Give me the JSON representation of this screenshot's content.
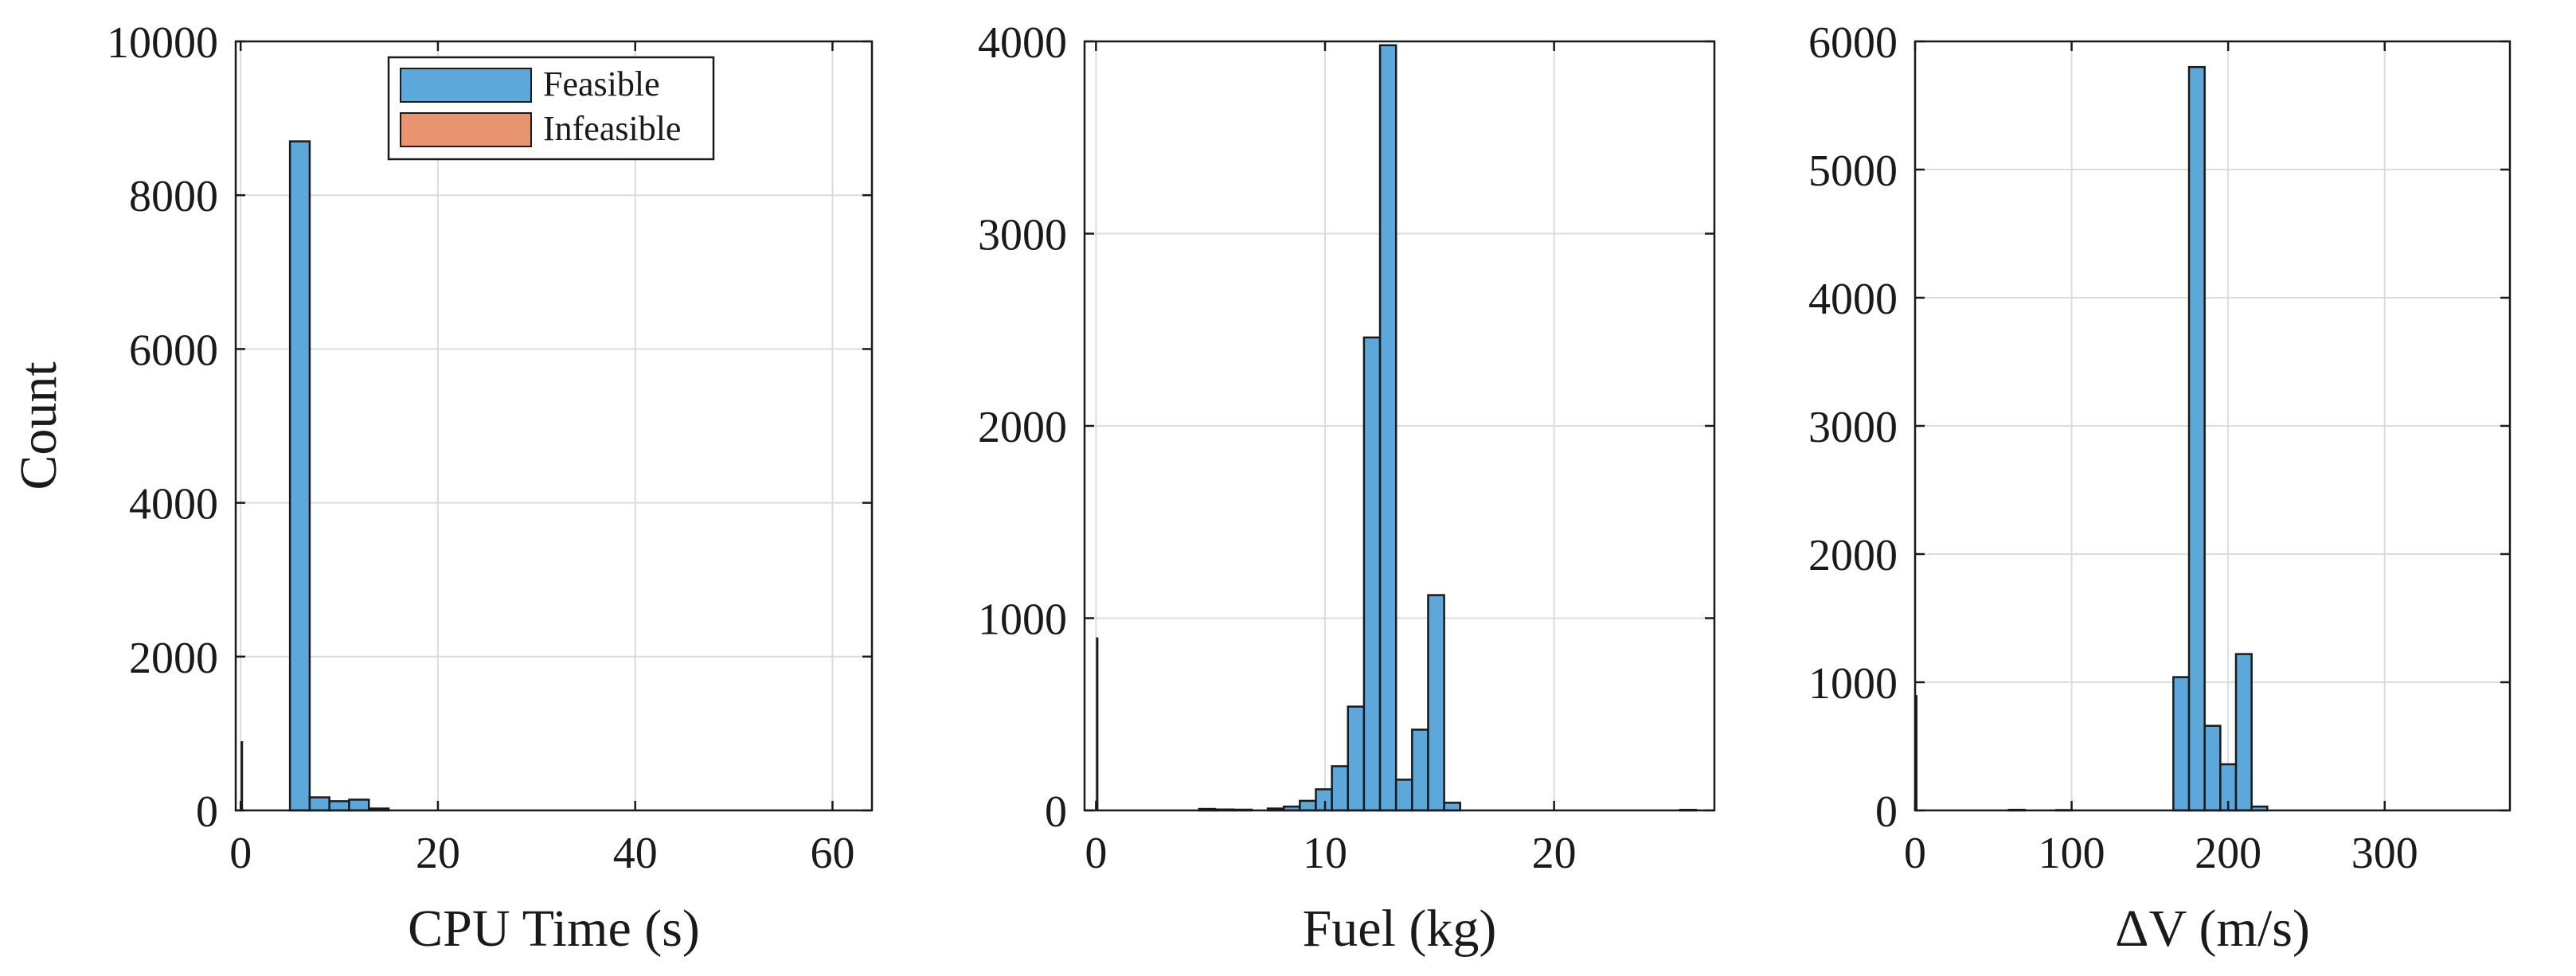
{
  "chart_data": [
    {
      "type": "bar",
      "title": "",
      "xlabel": "CPU Time (s)",
      "ylabel": "Count",
      "xlim": [
        -0.5,
        64
      ],
      "ylim": [
        0,
        10000
      ],
      "xticks": [
        "0",
        "20",
        "40",
        "60"
      ],
      "yticks": [
        "0",
        "2000",
        "4000",
        "6000",
        "8000",
        "10000"
      ],
      "grid": true,
      "legend_position": "top-center",
      "legend": [
        "Feasible",
        "Infeasible"
      ],
      "colors": {
        "feasible": "#5DA8DA",
        "infeasible": "#E8946E",
        "edge": "#1a1a1a"
      },
      "series": [
        {
          "name": "Feasible",
          "bins": [
            [
              5,
              7,
              8700
            ],
            [
              7,
              9,
              170
            ],
            [
              9,
              11,
              120
            ],
            [
              11,
              13,
              140
            ],
            [
              13,
              15,
              25
            ]
          ]
        },
        {
          "name": "Infeasible",
          "bins": [
            [
              0,
              0.15,
              900
            ]
          ]
        }
      ]
    },
    {
      "type": "bar",
      "title": "",
      "xlabel": "Fuel (kg)",
      "ylabel": "",
      "xlim": [
        -0.5,
        27
      ],
      "ylim": [
        0,
        4000
      ],
      "xticks": [
        "0",
        "10",
        "20"
      ],
      "yticks": [
        "0",
        "1000",
        "2000",
        "3000",
        "4000"
      ],
      "grid": true,
      "series": [
        {
          "name": "Feasible",
          "bins": [
            [
              4.5,
              5.2,
              8
            ],
            [
              5.2,
              6,
              5
            ],
            [
              6,
              6.8,
              4
            ],
            [
              7.5,
              8.2,
              10
            ],
            [
              8.2,
              8.9,
              20
            ],
            [
              8.9,
              9.6,
              50
            ],
            [
              9.6,
              10.3,
              110
            ],
            [
              10.3,
              11,
              230
            ],
            [
              11,
              11.7,
              540
            ],
            [
              11.7,
              12.4,
              2460
            ],
            [
              12.4,
              13.1,
              3980
            ],
            [
              13.1,
              13.8,
              160
            ],
            [
              13.8,
              14.5,
              420
            ],
            [
              14.5,
              15.2,
              1120
            ],
            [
              15.2,
              15.9,
              40
            ],
            [
              25.5,
              26.2,
              3
            ]
          ]
        },
        {
          "name": "Infeasible",
          "bins": [
            [
              0,
              0.08,
              900
            ]
          ]
        }
      ]
    },
    {
      "type": "bar",
      "title": "",
      "xlabel": "ΔV  (m/s)",
      "ylabel": "",
      "xlim": [
        0,
        380
      ],
      "ylim": [
        0,
        6000
      ],
      "xticks": [
        "0",
        "100",
        "200",
        "300"
      ],
      "yticks": [
        "0",
        "1000",
        "2000",
        "3000",
        "4000",
        "5000",
        "6000"
      ],
      "grid": true,
      "series": [
        {
          "name": "Feasible",
          "bins": [
            [
              60,
              70,
              5
            ],
            [
              90,
              100,
              3
            ],
            [
              165,
              175,
              1040
            ],
            [
              175,
              185,
              5800
            ],
            [
              185,
              195,
              660
            ],
            [
              195,
              205,
              360
            ],
            [
              205,
              215,
              1220
            ],
            [
              215,
              225,
              30
            ]
          ]
        },
        {
          "name": "Infeasible",
          "bins": [
            [
              0,
              1.2,
              900
            ]
          ]
        }
      ]
    }
  ]
}
